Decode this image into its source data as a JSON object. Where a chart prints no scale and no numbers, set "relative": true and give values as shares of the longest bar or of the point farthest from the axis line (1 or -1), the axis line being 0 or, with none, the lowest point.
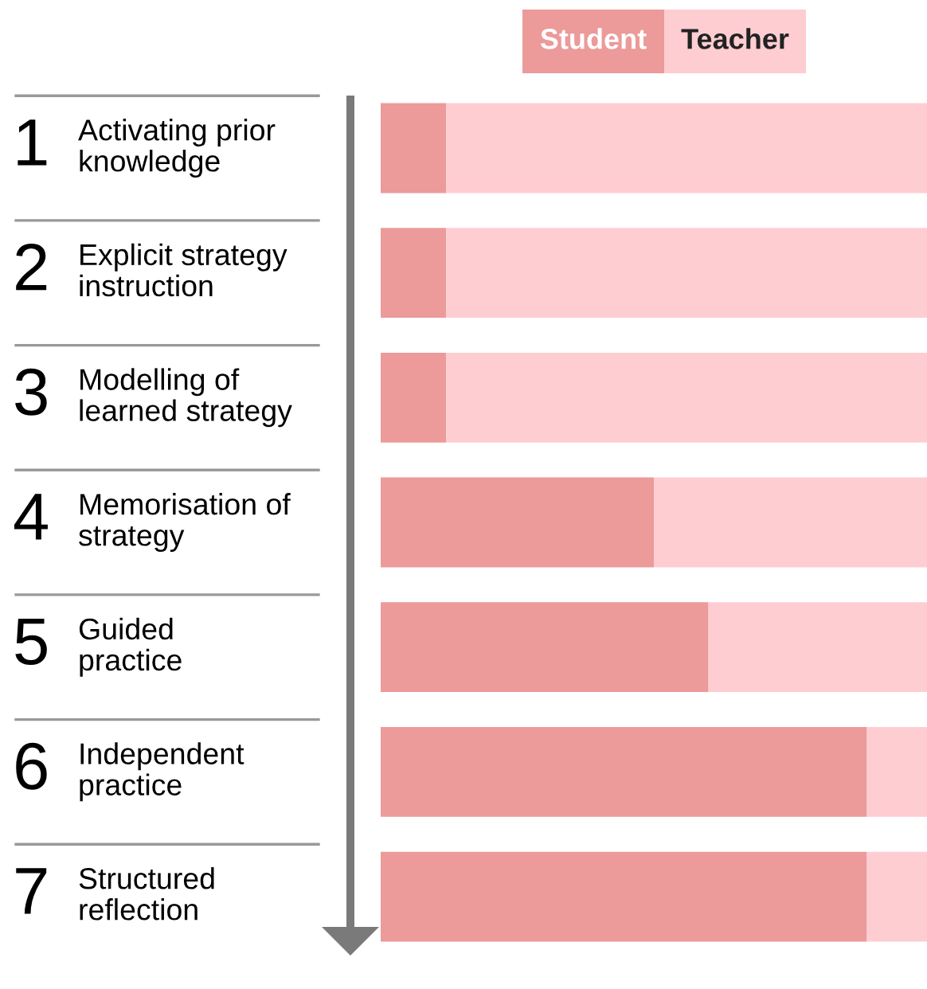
{
  "chart_data": {
    "type": "bar",
    "orientation": "horizontal",
    "stacked": true,
    "relative": true,
    "legend": "top right",
    "categories": [
      "1 Activating prior\nknowledge",
      "2 Explicit strategy\ninstruction",
      "3 Modelling of\nlearned strategy",
      "4 Memorisation of\nstrategy",
      "5 Guided\npractice",
      "6 Independent\npractice",
      "7 Structured\nreflection"
    ],
    "series": [
      {
        "name": "Student",
        "color": "#ec9a9a",
        "values": [
          0.12,
          0.12,
          0.12,
          0.5,
          0.6,
          0.89,
          0.89
        ]
      },
      {
        "name": "Teacher",
        "color": "#fecdd2",
        "values": [
          0.88,
          0.88,
          0.88,
          0.5,
          0.4,
          0.11,
          0.11
        ]
      }
    ]
  }
}
